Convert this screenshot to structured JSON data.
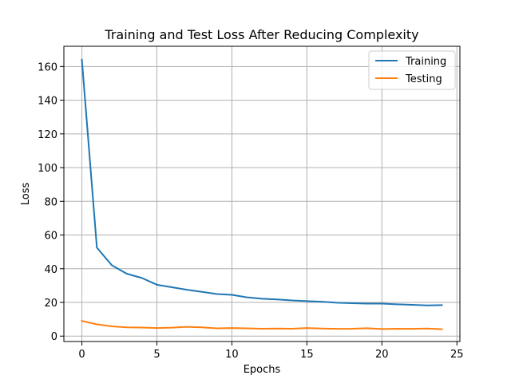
{
  "chart_data": {
    "type": "line",
    "title": "Training and Test Loss After Reducing Complexity",
    "xlabel": "Epochs",
    "ylabel": "Loss",
    "xlim": [
      -1.2,
      25.2
    ],
    "ylim": [
      -3.2,
      172
    ],
    "xticks": [
      0,
      5,
      10,
      15,
      20,
      25
    ],
    "yticks": [
      0,
      20,
      40,
      60,
      80,
      100,
      120,
      140,
      160
    ],
    "grid": true,
    "legend_position": "top-right",
    "x": [
      0,
      1,
      2,
      3,
      4,
      5,
      6,
      7,
      8,
      9,
      10,
      11,
      12,
      13,
      14,
      15,
      16,
      17,
      18,
      19,
      20,
      21,
      22,
      23,
      24
    ],
    "series": [
      {
        "name": "Training",
        "color": "#1f77b4",
        "values": [
          164,
          52.5,
          42,
          37,
          34.5,
          30.5,
          29,
          27.5,
          26.3,
          25,
          24.5,
          23,
          22.2,
          21.8,
          21.2,
          20.8,
          20.4,
          19.8,
          19.5,
          19.3,
          19.3,
          18.9,
          18.6,
          18.2,
          18.4
        ]
      },
      {
        "name": "Testing",
        "color": "#ff7f0e",
        "values": [
          9,
          7,
          5.8,
          5.2,
          5.1,
          4.8,
          5.0,
          5.5,
          5.2,
          4.6,
          4.8,
          4.6,
          4.4,
          4.5,
          4.4,
          4.8,
          4.5,
          4.3,
          4.4,
          4.7,
          4.2,
          4.4,
          4.3,
          4.5,
          4.1
        ]
      }
    ]
  }
}
